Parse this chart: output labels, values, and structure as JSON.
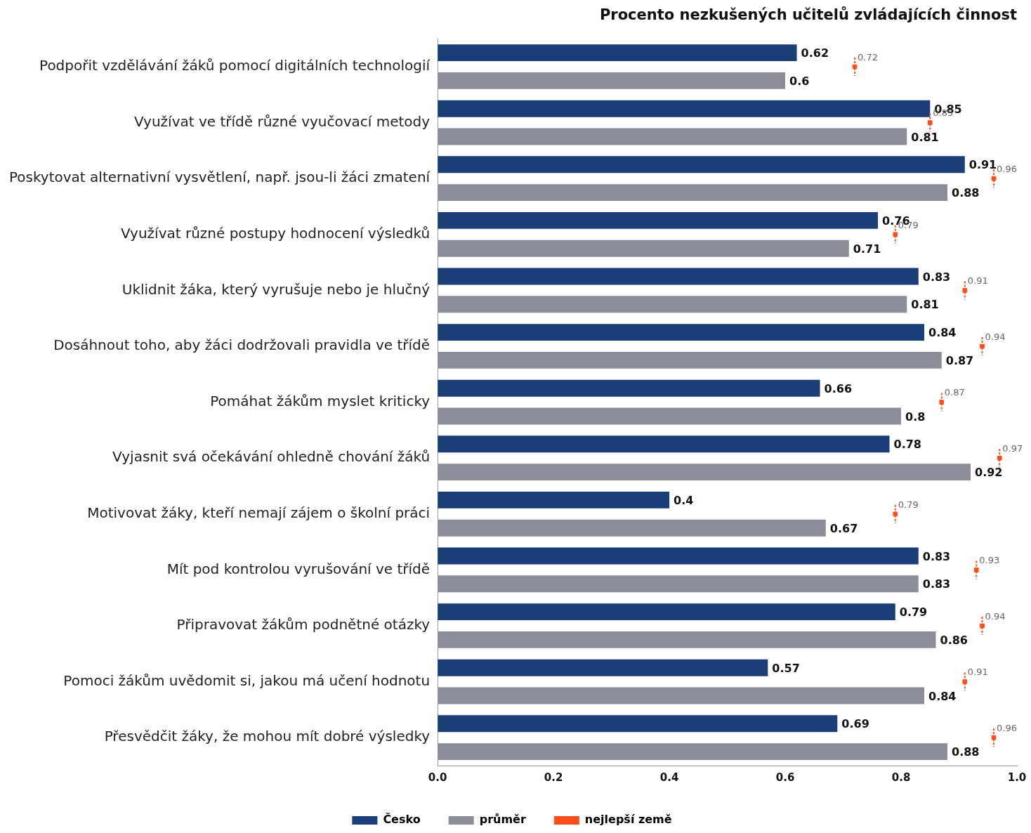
{
  "chart_data": {
    "type": "bar",
    "orientation": "horizontal",
    "title": "Procento nezkušených učitelů zvládajících činnost",
    "categories": [
      "Podpořit vzdělávání žáků pomocí digitálních technologií",
      "Využívat ve třídě různé vyučovací metody",
      "Poskytovat alternativní vysvětlení, např. jsou-li žáci zmatení",
      "Využívat různé postupy hodnocení výsledků",
      "Uklidnit žáka, který vyrušuje nebo je hlučný",
      "Dosáhnout toho, aby žáci dodržovali pravidla ve třídě",
      "Pomáhat žákům myslet kriticky",
      "Vyjasnit svá očekávání ohledně chování žáků",
      "Motivovat žáky, kteří nemají zájem o školní práci",
      "Mít pod kontrolou vyrušování ve třídě",
      "Připravovat žákům podnětné otázky",
      "Pomoci žákům uvědomit si, jakou má učení hodnotu",
      "Přesvědčit žáky, že mohou mít dobré výsledky"
    ],
    "series": [
      {
        "name": "Česko",
        "color": "#1b3d78",
        "values": [
          0.62,
          0.85,
          0.91,
          0.76,
          0.83,
          0.84,
          0.66,
          0.78,
          0.4,
          0.83,
          0.79,
          0.57,
          0.69
        ]
      },
      {
        "name": "průměr",
        "color": "#8b8e98",
        "values": [
          0.6,
          0.81,
          0.88,
          0.71,
          0.81,
          0.87,
          0.8,
          0.92,
          0.67,
          0.83,
          0.86,
          0.84,
          0.88
        ]
      },
      {
        "name": "nejlepší země",
        "type": "scatter",
        "color": "#ff4e1a",
        "values": [
          0.72,
          0.85,
          0.96,
          0.79,
          0.91,
          0.94,
          0.87,
          0.97,
          0.79,
          0.93,
          0.94,
          0.91,
          0.96
        ]
      }
    ],
    "xlim": [
      0,
      1
    ],
    "xticks": [
      {
        "value": 0,
        "label": "0.0"
      },
      {
        "value": 0.2,
        "label": "0.2"
      },
      {
        "value": 0.4,
        "label": "0.4"
      },
      {
        "value": 0.6,
        "label": "0.6"
      },
      {
        "value": 0.8,
        "label": "0.8"
      },
      {
        "value": 1,
        "label": "1.0"
      }
    ],
    "data_labels": true,
    "grid": false,
    "legend": "bottom"
  }
}
